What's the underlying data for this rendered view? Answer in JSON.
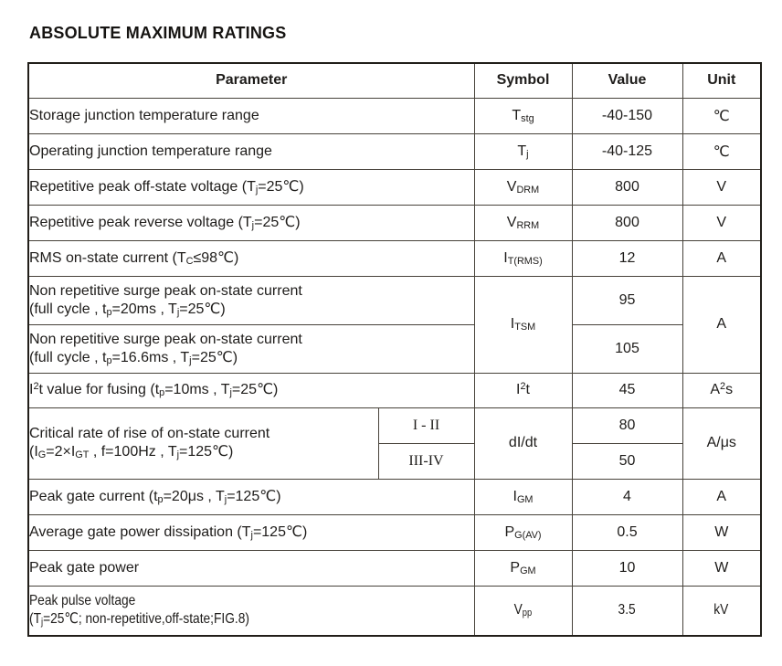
{
  "title": "ABSOLUTE MAXIMUM RATINGS",
  "colors": {
    "outer_border": "#211e19",
    "inner_border": "#47423a",
    "text": "#1e1c1a",
    "background": "#ffffff"
  },
  "table": {
    "headers": {
      "parameter": "Parameter",
      "symbol": "Symbol",
      "value": "Value",
      "unit": "Unit"
    },
    "rows": [
      {
        "param": "Storage junction temperature range",
        "symbol": "T~stg~",
        "value": "-40-150",
        "unit": "℃"
      },
      {
        "param": "Operating junction temperature range",
        "symbol": "T~j~",
        "value": "-40-125",
        "unit": "℃"
      },
      {
        "param": "Repetitive peak off-state voltage (T~j~=25℃)",
        "symbol": "V~DRM~",
        "value": "800",
        "unit": "V"
      },
      {
        "param": "Repetitive peak reverse voltage (T~j~=25℃)",
        "symbol": "V~RRM~",
        "value": "800",
        "unit": "V"
      },
      {
        "param": "RMS on-state current (T~C~≤98℃)",
        "symbol": "I~T(RMS)~",
        "value": "12",
        "unit": "A"
      },
      {
        "param": "Non repetitive surge peak on-state current\n(full cycle , t~p~=20ms , T~j~=25℃)",
        "symbol": "I~TSM~",
        "value": "95",
        "unit": "A"
      },
      {
        "param": "Non repetitive surge peak on-state current\n(full cycle , t~p~=16.6ms , T~j~=25℃)",
        "value": "105"
      },
      {
        "param": "I^2^t value for fusing (t~p~=10ms , T~j~=25℃)",
        "symbol": "I^2^t",
        "value": "45",
        "unit": "A^2^s"
      },
      {
        "param": "Critical rate of rise of on-state current\n(I~G~=2×I~GT~ , f=100Hz , T~j~=125℃)",
        "class_a": "I - II",
        "class_b": "III-IV",
        "symbol": "dI/dt",
        "value_a": "80",
        "value_b": "50",
        "unit": "A/μs"
      },
      {
        "param": "Peak gate current (t~p~=20μs , T~j~=125℃)",
        "symbol": "I~GM~",
        "value": "4",
        "unit": "A"
      },
      {
        "param": "Average gate power dissipation (T~j~=125℃)",
        "symbol": "P~G(AV)~",
        "value": "0.5",
        "unit": "W"
      },
      {
        "param": "Peak gate power",
        "symbol": "P~GM~",
        "value": "10",
        "unit": "W"
      },
      {
        "param": "Peak pulse voltage\n(T~j~=25℃; non-repetitive,off-state;FIG.8)",
        "symbol": "V~pp~",
        "value": "3.5",
        "unit": "kV"
      }
    ]
  }
}
